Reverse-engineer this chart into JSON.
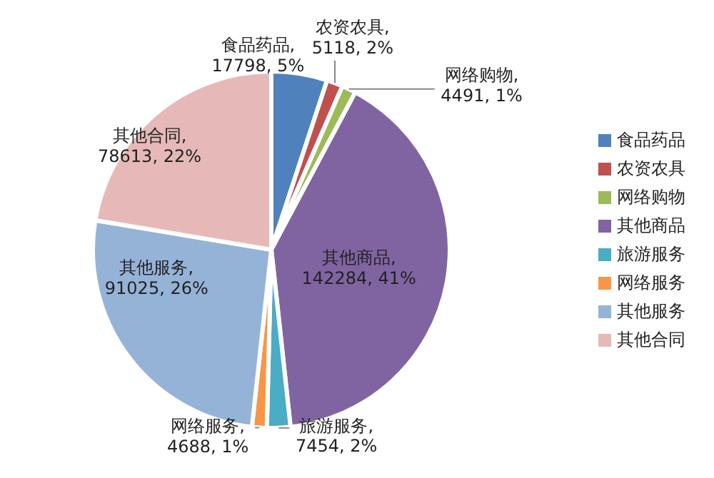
{
  "chart_data": {
    "type": "pie",
    "categories": [
      "食品药品",
      "农资农具",
      "网络购物",
      "其他商品",
      "旅游服务",
      "网络服务",
      "其他服务",
      "其他合同"
    ],
    "values": [
      17798,
      5118,
      4491,
      142284,
      7454,
      4688,
      91025,
      78613
    ],
    "colors": [
      "#4f81bd",
      "#c0504d",
      "#9bbb59",
      "#8064a2",
      "#4bacc6",
      "#f79646",
      "#95b3d7",
      "#e6b9b8"
    ],
    "value_labels": [
      "食品药品, 17798, 5%",
      "农资农具, 5118, 2%",
      "网络购物, 4491, 1%",
      "其他商品, 142284, 41%",
      "旅游服务, 7454, 2%",
      "网络服务, 4688, 1%",
      "其他服务, 91025, 26%",
      "其他合同, 78613, 22%"
    ],
    "legend": "right"
  }
}
